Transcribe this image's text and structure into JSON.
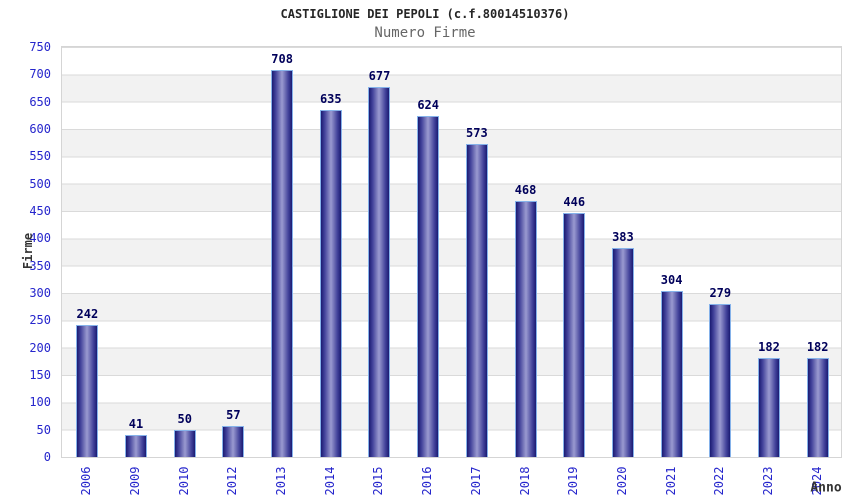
{
  "header": {
    "title": "CASTIGLIONE DEI PEPOLI (c.f.80014510376)",
    "subtitle": "Numero Firme"
  },
  "chart_data": {
    "type": "bar",
    "title": "CASTIGLIONE DEI PEPOLI (c.f.80014510376)",
    "subtitle": "Numero Firme",
    "xlabel": "Anno",
    "ylabel": "Firme",
    "categories": [
      "2006",
      "2009",
      "2010",
      "2012",
      "2013",
      "2014",
      "2015",
      "2016",
      "2017",
      "2018",
      "2019",
      "2020",
      "2021",
      "2022",
      "2023",
      "2024"
    ],
    "values": [
      242,
      41,
      50,
      57,
      708,
      635,
      677,
      624,
      573,
      468,
      446,
      383,
      304,
      279,
      182,
      182
    ],
    "ylim": [
      0,
      750
    ],
    "ytick_step": 50,
    "grid": "horizontal-bands-alternating",
    "legend": "none",
    "bar_labels": true,
    "colors": {
      "title": "#262626",
      "subtitle": "#666666",
      "axis_title": "#333333",
      "tick_label": "#2626cc",
      "value_label": "#00005a",
      "bar_edge": "#1b1b72",
      "bar_center": "#9a9ad0",
      "bar_border": "#85b2ea",
      "band": "#f2f2f2",
      "grid_line": "#dadada"
    }
  }
}
